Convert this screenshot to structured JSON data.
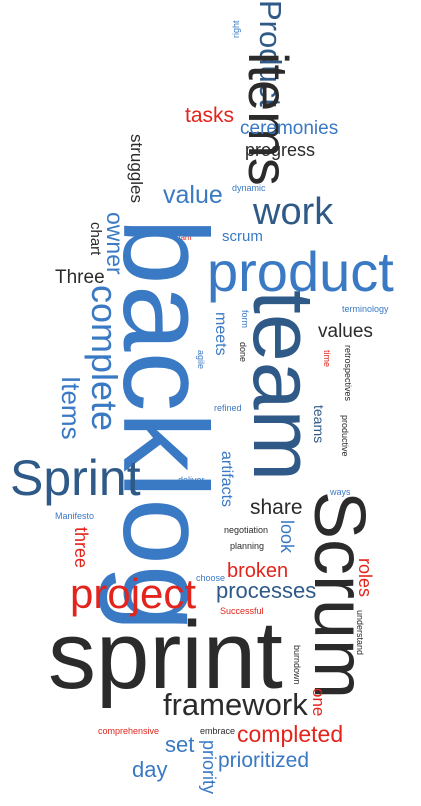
{
  "colors": {
    "dark": "#2b2b2b",
    "blue": "#3a79c3",
    "navy": "#2f5a88",
    "red": "#e3241c"
  },
  "words": {
    "product_top": "Product",
    "right": "right",
    "items_big": "items",
    "tasks": "tasks",
    "ceremonies": "ceremonies",
    "progress": "progress",
    "struggles": "struggles",
    "dynamic": "dynamic",
    "value": "value",
    "work": "work",
    "team_small": "Team",
    "scrum_small": "scrum",
    "owner": "owner",
    "chart": "chart",
    "product_big": "product",
    "three_cap": "Three",
    "backlog": "backlog",
    "team_big": "team",
    "complete": "complete",
    "terminology": "terminology",
    "form": "form",
    "meets": "meets",
    "done": "done",
    "values": "values",
    "agile": "agile",
    "time": "time",
    "retrospectives": "retrospectives",
    "items_cap": "Items",
    "refined": "refined",
    "teams": "teams",
    "productive": "productive",
    "sprint_cap": "Sprint",
    "artifacts": "artifacts",
    "deliver": "deliver",
    "ways": "ways",
    "manifesto": "Manifesto",
    "share": "share",
    "scrum_big": "Scrum",
    "negotiation": "negotiation",
    "look": "look",
    "planning": "planning",
    "three_red": "three",
    "roles": "roles",
    "broken": "broken",
    "choose": "choose",
    "project": "project",
    "processes": "processes",
    "understand": "understand",
    "successful": "Successful",
    "sprint_big": "sprint",
    "burndown": "burndown",
    "one": "one",
    "framework": "framework",
    "comprehensive": "comprehensive",
    "embrace": "embrace",
    "completed": "completed",
    "set": "set",
    "priority": "priority",
    "day": "day",
    "prioritized": "prioritized"
  }
}
